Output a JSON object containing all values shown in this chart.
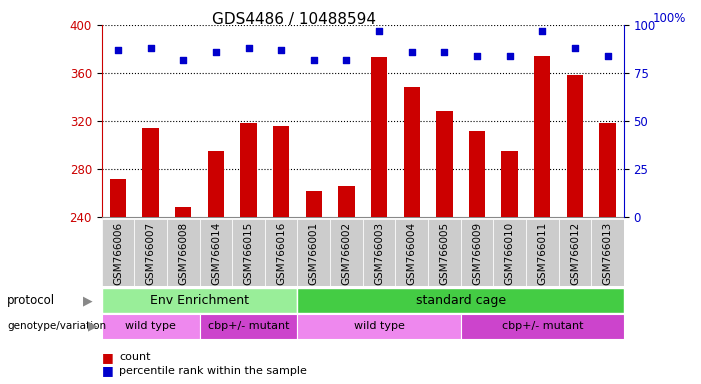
{
  "title": "GDS4486 / 10488594",
  "samples": [
    "GSM766006",
    "GSM766007",
    "GSM766008",
    "GSM766014",
    "GSM766015",
    "GSM766016",
    "GSM766001",
    "GSM766002",
    "GSM766003",
    "GSM766004",
    "GSM766005",
    "GSM766009",
    "GSM766010",
    "GSM766011",
    "GSM766012",
    "GSM766013"
  ],
  "counts": [
    272,
    314,
    248,
    295,
    318,
    316,
    262,
    266,
    373,
    348,
    328,
    312,
    295,
    374,
    358,
    318
  ],
  "percentiles": [
    87,
    88,
    82,
    86,
    88,
    87,
    82,
    82,
    97,
    86,
    86,
    84,
    84,
    97,
    88,
    84
  ],
  "ylim_left": [
    240,
    400
  ],
  "ylim_right": [
    0,
    100
  ],
  "yticks_left": [
    240,
    280,
    320,
    360,
    400
  ],
  "yticks_right": [
    0,
    25,
    50,
    75,
    100
  ],
  "bar_color": "#cc0000",
  "dot_color": "#0000cc",
  "bar_bottom": 240,
  "protocol_labels": [
    "Env Enrichment",
    "standard cage"
  ],
  "protocol_color_env": "#99ee99",
  "protocol_color_std": "#44cc44",
  "genotype_labels": [
    "wild type",
    "cbp+/- mutant",
    "wild type",
    "cbp+/- mutant"
  ],
  "genotype_color_wt": "#ee88ee",
  "genotype_color_mut": "#cc44cc",
  "label_protocol": "protocol",
  "label_genotype": "genotype/variation",
  "legend_count": "count",
  "legend_pct": "percentile rank within the sample",
  "bg_color": "#ffffff",
  "tick_label_bg": "#cccccc",
  "right_axis_label": "100%",
  "title_fontsize": 11,
  "tick_fontsize": 7.5,
  "annotation_fontsize": 9
}
